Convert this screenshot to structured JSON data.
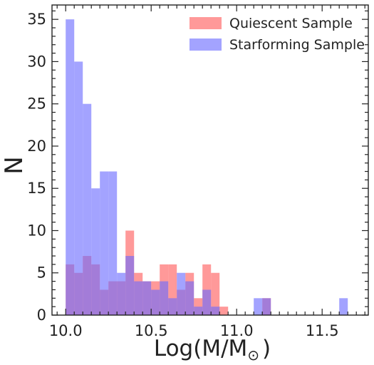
{
  "chart_data": {
    "type": "bar",
    "subtype": "overlapping-histogram",
    "title": "",
    "xlabel_main": "Log(M/M",
    "xlabel_sub": "⊙",
    "xlabel_close": ")",
    "ylabel": "N",
    "xlim": [
      9.92,
      11.77
    ],
    "ylim": [
      0,
      36.7
    ],
    "xticks": [
      10.0,
      10.5,
      11.0,
      11.5
    ],
    "xtick_labels": [
      "10.0",
      "10.5",
      "11.0",
      "11.5"
    ],
    "yticks": [
      0,
      5,
      10,
      15,
      20,
      25,
      30,
      35
    ],
    "ytick_labels": [
      "0",
      "5",
      "10",
      "15",
      "20",
      "25",
      "30",
      "35"
    ],
    "grid": false,
    "legend_position": "top-right",
    "bin_width": 0.05,
    "series": [
      {
        "name": "Quiescent Sample",
        "color": "#ff5a5a",
        "bins": [
          {
            "x0": 10.0,
            "count": 6
          },
          {
            "x0": 10.05,
            "count": 5
          },
          {
            "x0": 10.1,
            "count": 7
          },
          {
            "x0": 10.15,
            "count": 6
          },
          {
            "x0": 10.2,
            "count": 3
          },
          {
            "x0": 10.25,
            "count": 4
          },
          {
            "x0": 10.3,
            "count": 4
          },
          {
            "x0": 10.35,
            "count": 10
          },
          {
            "x0": 10.4,
            "count": 5
          },
          {
            "x0": 10.45,
            "count": 4
          },
          {
            "x0": 10.5,
            "count": 4
          },
          {
            "x0": 10.55,
            "count": 6
          },
          {
            "x0": 10.6,
            "count": 6
          },
          {
            "x0": 10.65,
            "count": 3
          },
          {
            "x0": 10.7,
            "count": 5
          },
          {
            "x0": 10.75,
            "count": 2
          },
          {
            "x0": 10.8,
            "count": 6
          },
          {
            "x0": 10.85,
            "count": 5
          },
          {
            "x0": 10.9,
            "count": 1
          },
          {
            "x0": 11.15,
            "count": 2
          }
        ]
      },
      {
        "name": "Starforming Sample",
        "color": "#6a6aff",
        "bins": [
          {
            "x0": 10.0,
            "count": 35
          },
          {
            "x0": 10.05,
            "count": 30
          },
          {
            "x0": 10.1,
            "count": 25
          },
          {
            "x0": 10.15,
            "count": 15
          },
          {
            "x0": 10.2,
            "count": 17
          },
          {
            "x0": 10.25,
            "count": 17
          },
          {
            "x0": 10.3,
            "count": 5
          },
          {
            "x0": 10.35,
            "count": 7
          },
          {
            "x0": 10.4,
            "count": 4
          },
          {
            "x0": 10.45,
            "count": 4
          },
          {
            "x0": 10.5,
            "count": 3
          },
          {
            "x0": 10.55,
            "count": 4
          },
          {
            "x0": 10.6,
            "count": 2
          },
          {
            "x0": 10.65,
            "count": 5
          },
          {
            "x0": 10.7,
            "count": 4
          },
          {
            "x0": 10.75,
            "count": 1
          },
          {
            "x0": 10.8,
            "count": 3
          },
          {
            "x0": 10.85,
            "count": 1
          },
          {
            "x0": 11.1,
            "count": 2
          },
          {
            "x0": 11.15,
            "count": 2
          },
          {
            "x0": 11.6,
            "count": 2
          }
        ]
      }
    ]
  }
}
